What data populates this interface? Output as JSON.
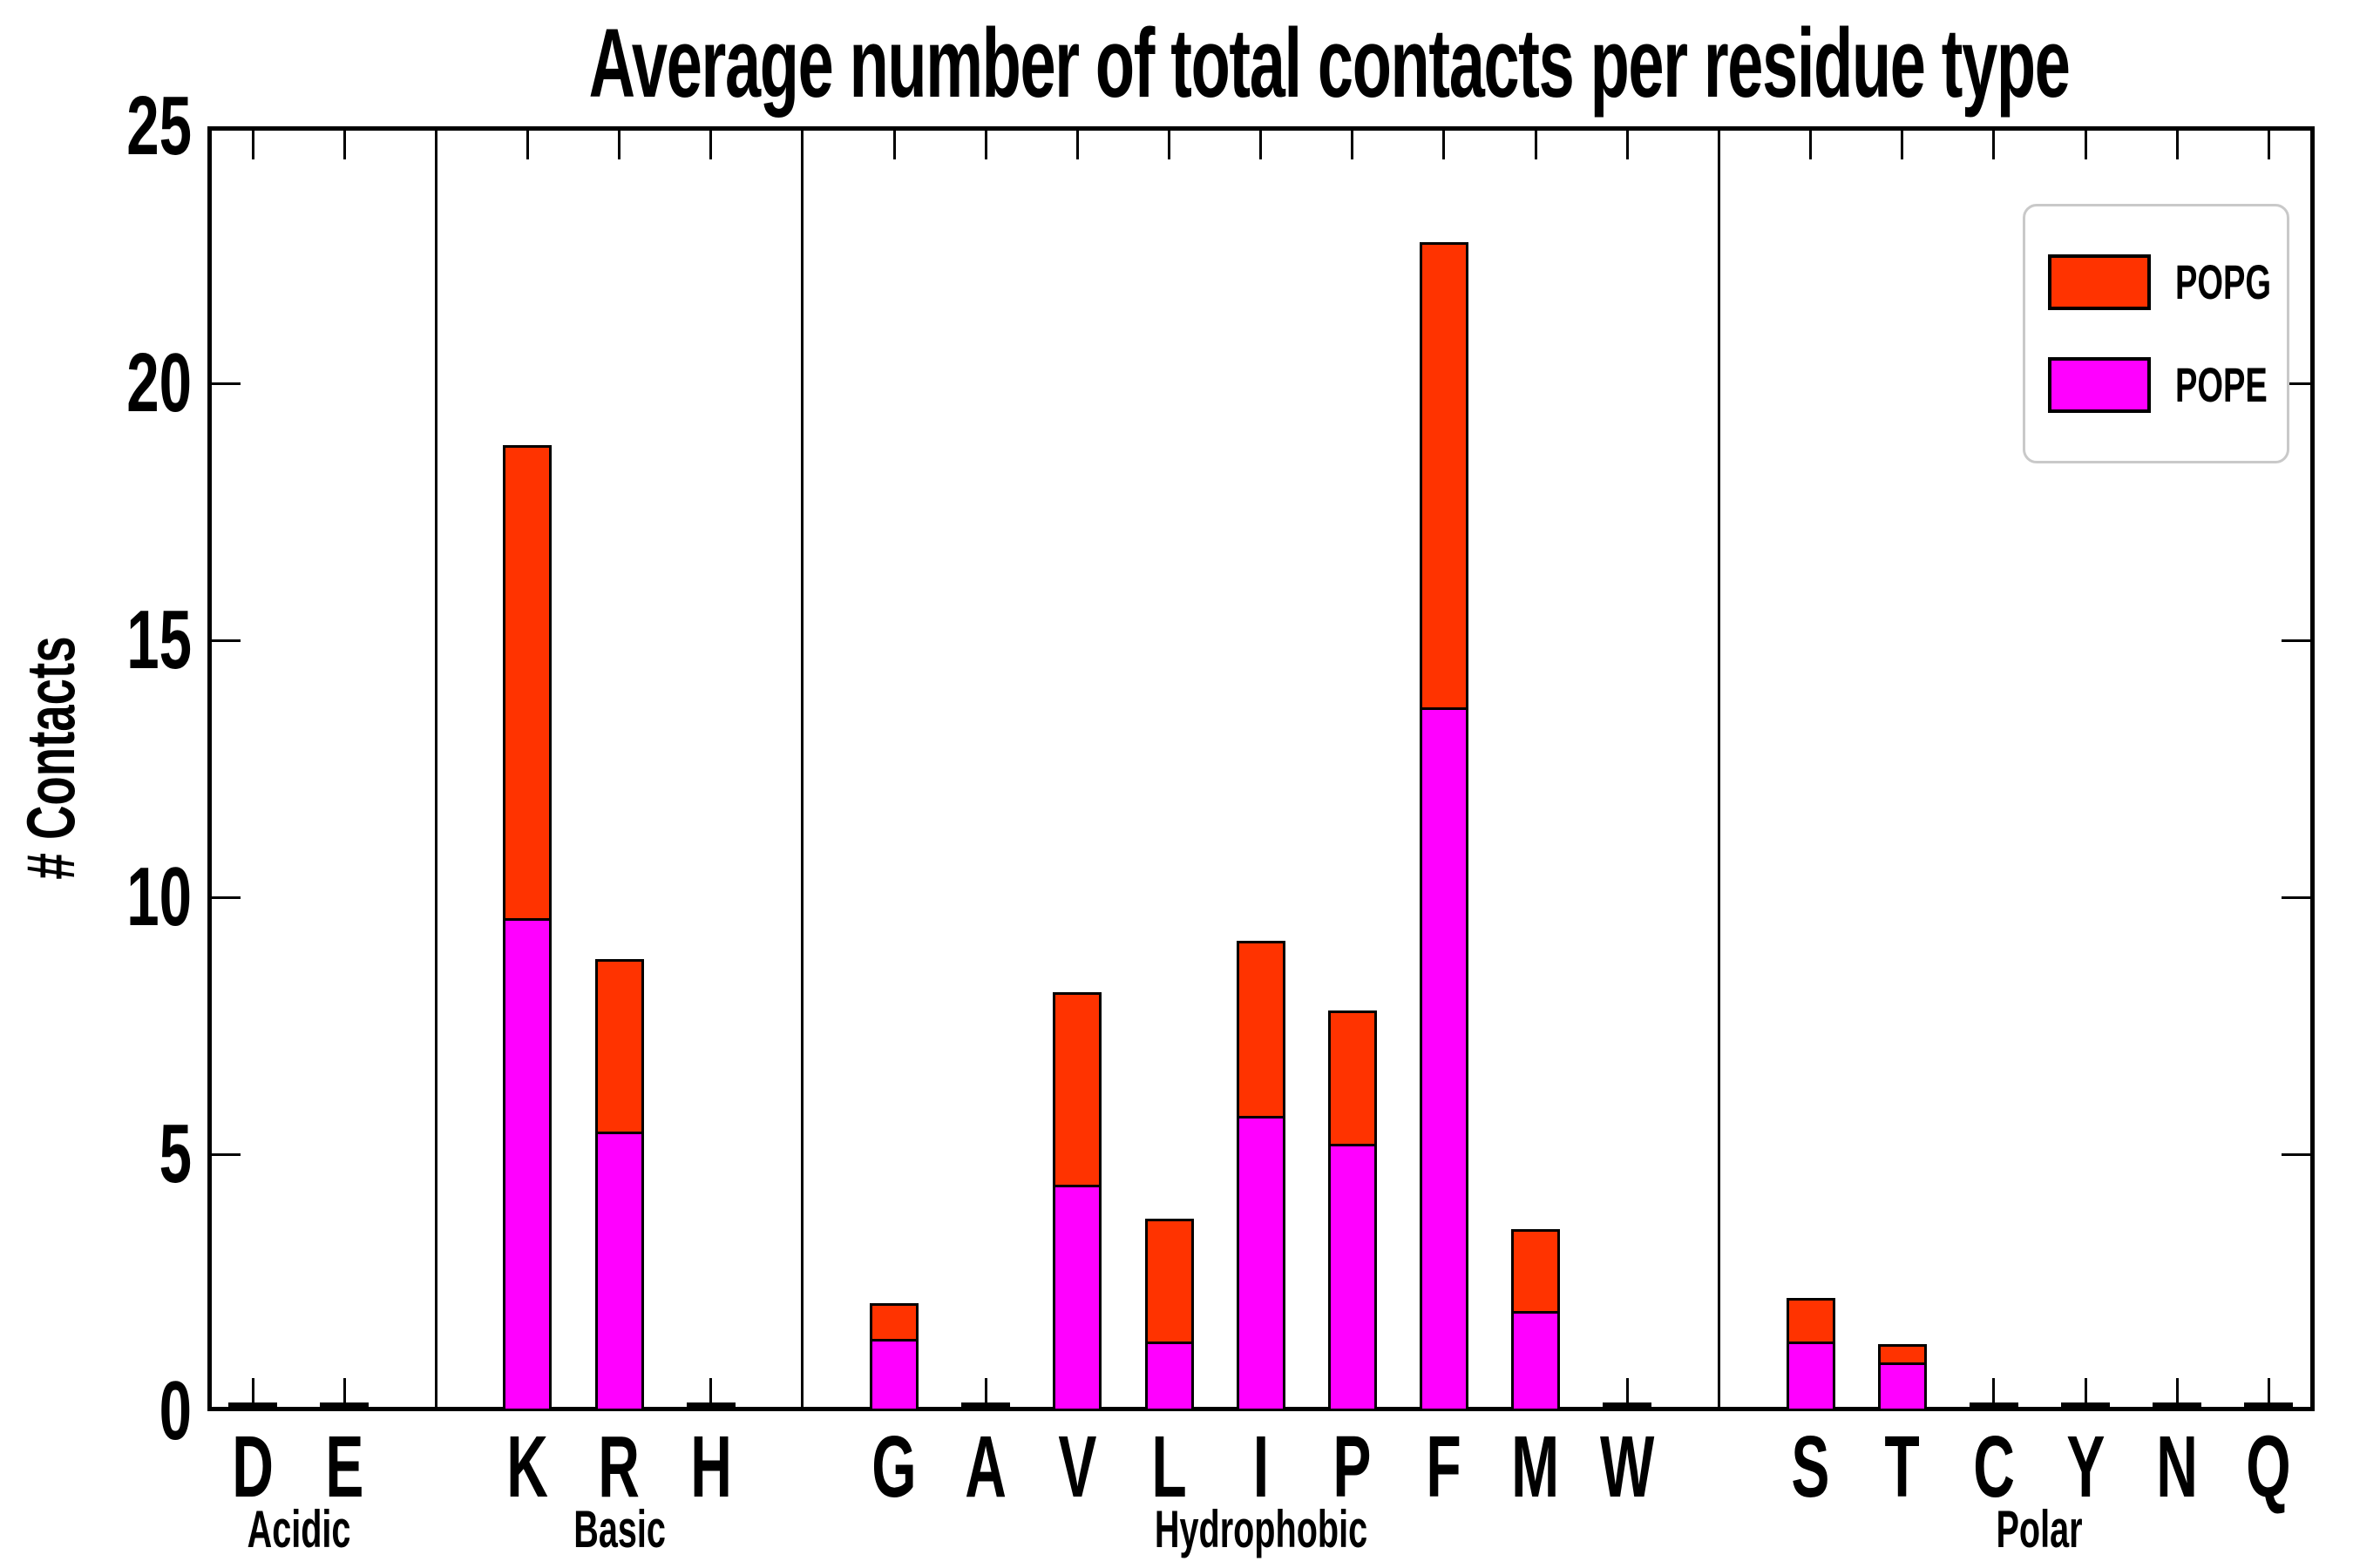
{
  "title": "Average number of total contacts per residue type",
  "ylabel": "# Contacts",
  "y_tick_labels": [
    "0",
    "5",
    "10",
    "15",
    "20",
    "25"
  ],
  "legend": {
    "items": [
      {
        "label": "POPG",
        "color": "#ff3300"
      },
      {
        "label": "POPE",
        "color": "#ff00ff"
      }
    ]
  },
  "chart_data": {
    "type": "bar",
    "stacked": true,
    "title": "Average number of total contacts per residue type",
    "ylabel": "# Contacts",
    "xlabel": "",
    "ylim": [
      0,
      25
    ],
    "yticks": [
      0,
      5,
      10,
      15,
      20,
      25
    ],
    "grid": false,
    "legend_position": "upper right",
    "groups": [
      {
        "label": "Acidic",
        "categories": [
          "D",
          "E"
        ]
      },
      {
        "label": "Basic",
        "categories": [
          "K",
          "R",
          "H"
        ]
      },
      {
        "label": "Hydrophobic",
        "categories": [
          "G",
          "A",
          "V",
          "L",
          "I",
          "P",
          "F",
          "M",
          "W"
        ]
      },
      {
        "label": "Polar",
        "categories": [
          "S",
          "T",
          "C",
          "Y",
          "N",
          "Q"
        ]
      }
    ],
    "categories": [
      "D",
      "E",
      "K",
      "R",
      "H",
      "G",
      "A",
      "V",
      "L",
      "I",
      "P",
      "F",
      "M",
      "W",
      "S",
      "T",
      "C",
      "Y",
      "N",
      "Q"
    ],
    "series": [
      {
        "name": "POPE",
        "color": "#ff00ff",
        "values": [
          0,
          0,
          9.65,
          5.5,
          0,
          1.45,
          0,
          4.45,
          1.4,
          5.8,
          5.25,
          13.75,
          2.0,
          0,
          1.4,
          1.0,
          0,
          0,
          0,
          0
        ]
      },
      {
        "name": "POPG",
        "color": "#ff3300",
        "values": [
          0,
          0,
          9.2,
          3.35,
          0,
          0.7,
          0,
          3.75,
          2.4,
          3.4,
          2.6,
          9.05,
          1.6,
          0,
          0.85,
          0.35,
          0,
          0,
          0,
          0
        ]
      }
    ]
  }
}
